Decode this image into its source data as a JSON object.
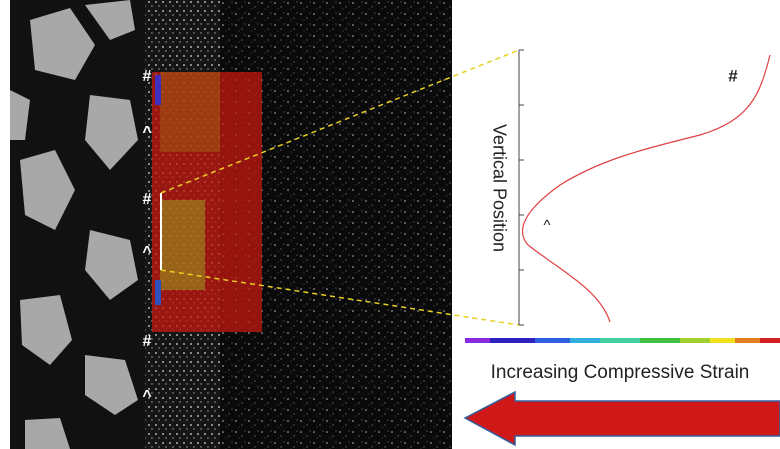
{
  "image_labels": [
    "#",
    "^",
    "#",
    "^",
    "#",
    "^"
  ],
  "plot": {
    "axis_label": "Vertical Position",
    "labels": [
      "#",
      "^"
    ]
  },
  "caption": "Increasing Compressive Strain"
}
